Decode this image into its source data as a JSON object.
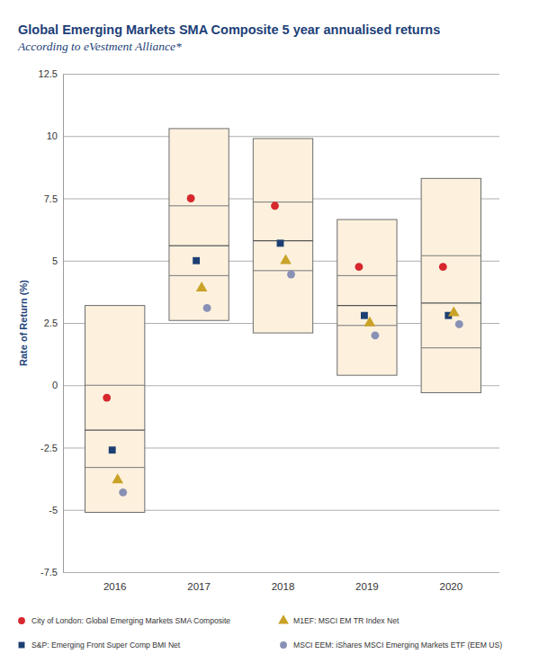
{
  "chart_data": {
    "type": "box",
    "title": "Global Emerging Markets SMA Composite 5 year annualised returns",
    "subtitle": "According to eVestment Alliance*",
    "y_label": "Rate of Return (%)",
    "categories": [
      "2016",
      "2017",
      "2018",
      "2019",
      "2020"
    ],
    "boxes": [
      {
        "low": -5.1,
        "q1": -3.3,
        "median": -1.8,
        "q3": 0.0,
        "high": 3.2
      },
      {
        "low": 2.6,
        "q1": 4.4,
        "median": 5.6,
        "q3": 7.2,
        "high": 10.3
      },
      {
        "low": 2.1,
        "q1": 4.6,
        "median": 5.8,
        "q3": 7.35,
        "high": 9.9
      },
      {
        "low": 0.4,
        "q1": 2.4,
        "median": 3.2,
        "q3": 4.4,
        "high": 6.65
      },
      {
        "low": -0.3,
        "q1": 1.5,
        "median": 3.3,
        "q3": 5.2,
        "high": 8.3
      }
    ],
    "box_color": "#fdf1de",
    "series": [
      {
        "name": "City of London: Global Emerging Markets SMA Composite",
        "color": "#d7282f",
        "marker": "circle",
        "values": [
          -0.5,
          7.5,
          7.2,
          4.75,
          4.75
        ]
      },
      {
        "name": "S&P: Emerging Front Super Comp BMI Net",
        "color": "#1c3f73",
        "marker": "square",
        "values": [
          -2.6,
          5.0,
          5.7,
          2.8,
          2.8
        ]
      },
      {
        "name": "M1EF: MSCI EM TR Index Net",
        "color": "#c9a227",
        "marker": "triangle",
        "values": [
          -3.8,
          3.9,
          5.0,
          2.5,
          2.9
        ]
      },
      {
        "name": "MSCI EEM: iShares MSCI Emerging Markets ETF (EEM US)",
        "color": "#8890b5",
        "marker": "circle",
        "values": [
          -4.3,
          3.1,
          4.45,
          2.0,
          2.45
        ]
      }
    ],
    "ylim": [
      -7.5,
      12.5
    ],
    "yticks": [
      -7.5,
      -5,
      -2.5,
      0,
      2.5,
      5,
      7.5,
      10,
      12.5
    ],
    "grid": true,
    "legend": "bottom"
  }
}
